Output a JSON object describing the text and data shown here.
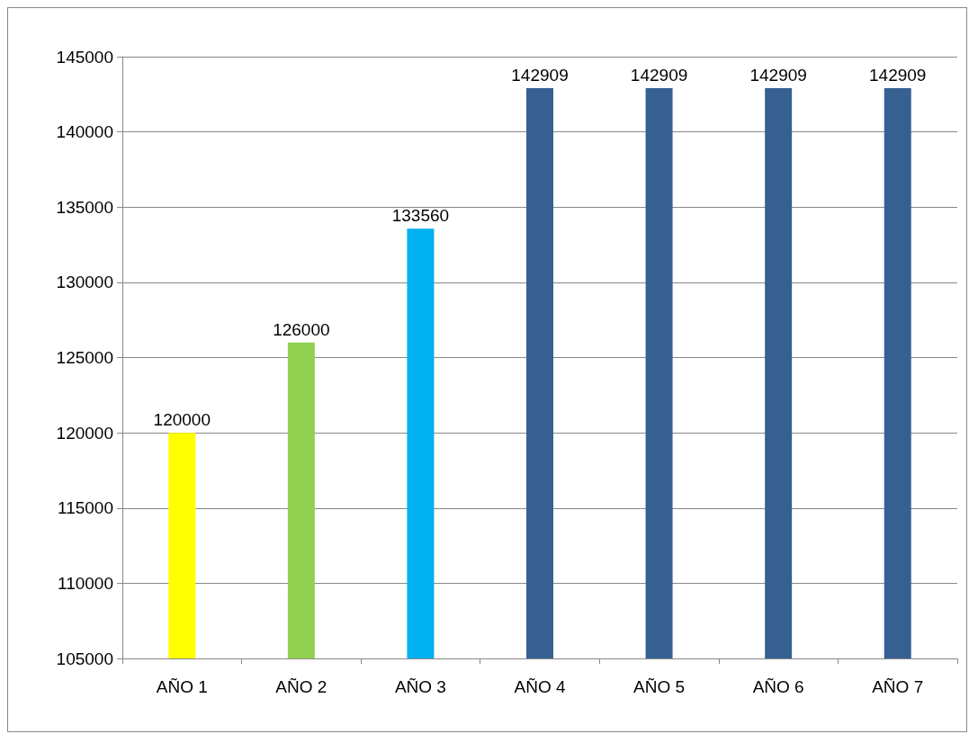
{
  "chart_data": {
    "type": "bar",
    "categories": [
      "AÑO 1",
      "AÑO 2",
      "AÑO 3",
      "AÑO 4",
      "AÑO 5",
      "AÑO 6",
      "AÑO 7"
    ],
    "values": [
      120000,
      126000,
      133560,
      142909,
      142909,
      142909,
      142909
    ],
    "colors": [
      "#ffff00",
      "#92d050",
      "#00b0f0",
      "#376092",
      "#376092",
      "#376092",
      "#376092"
    ],
    "ylim": [
      105000,
      145000
    ],
    "yticks": [
      105000,
      110000,
      115000,
      120000,
      125000,
      130000,
      135000,
      140000,
      145000
    ],
    "grid": "y",
    "data_labels": true
  }
}
